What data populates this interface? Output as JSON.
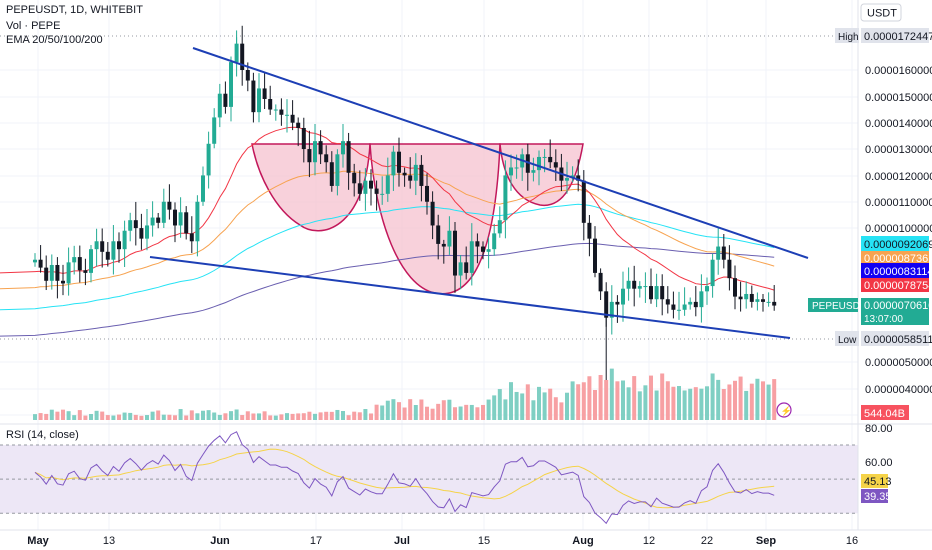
{
  "header": {
    "symbol_line": "PEPEUSDT, 1D, WHITEBIT",
    "volume_line": "Vol · PEPE",
    "ema_line": "EMA 20/50/100/200"
  },
  "currency_label": "USDT",
  "price_axis": {
    "ticks": [
      "0.0000160000",
      "0.0000150000",
      "0.0000140000",
      "0.0000130000",
      "0.0000120000",
      "0.0000110000",
      "0.0000100000",
      "0.0000050000",
      "0.0000040000"
    ]
  },
  "rsi": {
    "title": "RSI (14, close)",
    "ticks": [
      "80.00",
      "60.00"
    ],
    "value": "39.35",
    "ma_value": "45.13"
  },
  "x_axis": {
    "labels": [
      "May",
      "13",
      "Jun",
      "17",
      "Jul",
      "15",
      "Aug",
      "12",
      "22",
      "Sep",
      "16"
    ]
  },
  "price_tags": [
    {
      "kind": "high",
      "label": "High",
      "value": "0.0000172447",
      "bg": "#e0e3eb",
      "fg": "#131722"
    },
    {
      "kind": "ema20",
      "value": "0.0000078754",
      "bg": "#f23645",
      "fg": "#ffffff"
    },
    {
      "kind": "ema50",
      "value": "0.0000087361",
      "bg": "#f7a350",
      "fg": "#ffffff"
    },
    {
      "kind": "ema100",
      "value": "0.0000092069",
      "bg": "#26e3f5",
      "fg": "#131722"
    },
    {
      "kind": "ema200",
      "value": "0.0000083114",
      "bg": "#1200f2",
      "fg": "#ffffff"
    },
    {
      "kind": "last",
      "label": "PEPEUSDT",
      "value": "0.0000070610",
      "countdown": "13:07:00",
      "bg": "#22ab94",
      "fg": "#ffffff"
    },
    {
      "kind": "low",
      "label": "Low",
      "value": "0.0000058511",
      "bg": "#e0e3eb",
      "fg": "#131722"
    },
    {
      "kind": "volume",
      "value": "544.04B",
      "bg": "#f7525f",
      "fg": "#ffffff"
    }
  ],
  "colors": {
    "up": "#22ab94",
    "down": "#131722",
    "vol_up": "#7fcfc3",
    "vol_down": "#f7a0a3",
    "ema20": "#f23645",
    "ema50": "#f7a350",
    "ema100": "#26e3f5",
    "ema200": "#6a5fb0",
    "trendline": "#1d3fb5",
    "pattern_fill": "#f6c1cf",
    "pattern_stroke": "#c2185b",
    "rsi_line": "#7e57c2",
    "rsi_ma": "#f5d349",
    "rsi_band": "#ede7f6"
  },
  "chart_data": {
    "type": "candlestick",
    "symbol": "PEPEUSDT",
    "interval": "1D",
    "exchange": "WHITEBIT",
    "closes": [
      8.8,
      8.5,
      8.0,
      8.6,
      8.0,
      7.9,
      8.7,
      8.9,
      8.4,
      8.3,
      9.2,
      9.5,
      9.1,
      8.8,
      9.5,
      9.2,
      9.9,
      10.3,
      10.0,
      9.6,
      10.1,
      10.4,
      10.2,
      11.0,
      10.7,
      10.1,
      10.6,
      9.8,
      9.5,
      11.0,
      12.0,
      13.2,
      14.2,
      15.1,
      14.6,
      16.3,
      17.0,
      16.0,
      15.6,
      14.4,
      15.3,
      14.9,
      14.5,
      14.5,
      14.3,
      14.3,
      14.0,
      13.8,
      13.0,
      12.5,
      13.3,
      12.8,
      12.5,
      11.6,
      12.8,
      13.3,
      12.1,
      11.7,
      11.3,
      11.8,
      11.5,
      11.3,
      11.3,
      12.0,
      12.9,
      12.1,
      12.0,
      11.8,
      12.4,
      11.6,
      11.0,
      10.1,
      9.4,
      9.3,
      9.9,
      8.2,
      8.7,
      8.3,
      9.5,
      9.3,
      9.1,
      9.2,
      9.8,
      10.3,
      12.0,
      12.3,
      12.3,
      12.8,
      12.1,
      12.2,
      12.7,
      12.7,
      12.5,
      12.3,
      11.8,
      11.9,
      12.0,
      11.8,
      10.2,
      9.6,
      8.3,
      7.6,
      6.6,
      7.2,
      7.1,
      7.7,
      8.0,
      7.7,
      7.8,
      7.8,
      7.3,
      7.8,
      7.3,
      7.1,
      6.9,
      6.9,
      7.1,
      7.2,
      7.0,
      7.6,
      7.8,
      8.8,
      9.3,
      8.8,
      8.1,
      7.4,
      7.3,
      7.5,
      7.2,
      7.3,
      7.2,
      7.2,
      7.06
    ],
    "high": 17.2447,
    "low": 5.8511,
    "last": 7.061,
    "volume_last": "544.04B",
    "emas": {
      "ema20": 7.8754,
      "ema50": 8.7361,
      "ema100": 9.2069,
      "ema200": 8.3114
    },
    "rsi_last": 39.35,
    "rsi_ma_last": 45.13,
    "rsi_levels": [
      70,
      50,
      30
    ],
    "y_unit": "1e-6 USDT (multiply by 0.000001)",
    "ylim": [
      3.3,
      18.6
    ]
  }
}
